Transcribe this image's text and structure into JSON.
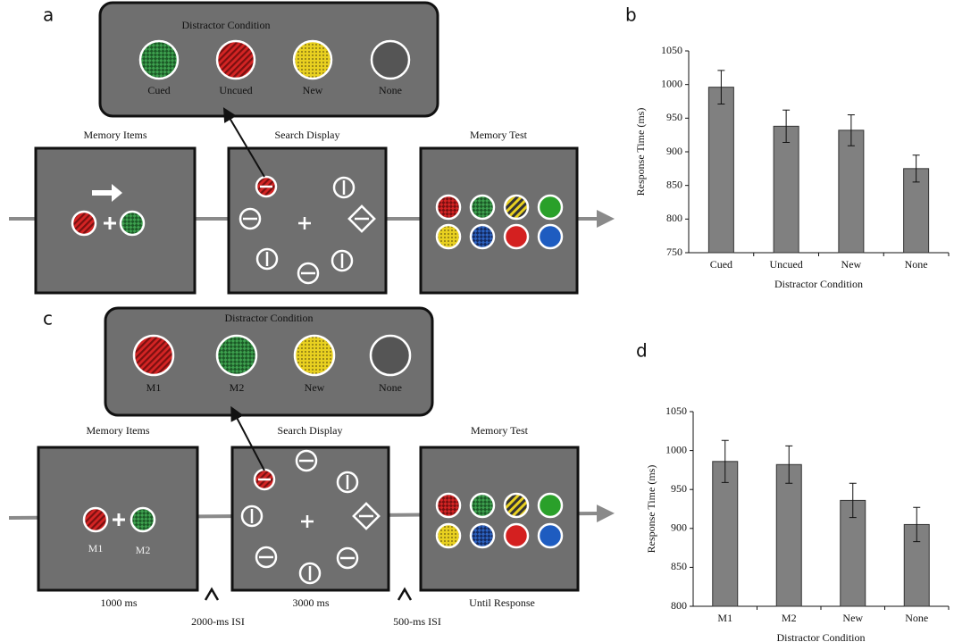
{
  "panels": {
    "a": {
      "label": "a",
      "distractor_title": "Distractor Condition",
      "distractor_labels": [
        "Cued",
        "Uncued",
        "New",
        "None"
      ],
      "frame_titles": [
        "Memory Items",
        "Search Display",
        "Memory Test"
      ]
    },
    "b": {
      "label": "b"
    },
    "c": {
      "label": "c",
      "distractor_title": "Distractor Condition",
      "distractor_labels": [
        "M1",
        "M2",
        "New",
        "None"
      ],
      "frame_titles": [
        "Memory Items",
        "Search Display",
        "Memory Test"
      ],
      "item_labels": [
        "M1",
        "M2"
      ],
      "durations": [
        "1000 ms",
        "3000 ms",
        "Until Response"
      ],
      "isi": [
        "2000-ms ISI",
        "500-ms ISI"
      ]
    },
    "d": {
      "label": "d"
    }
  },
  "chart_data": [
    {
      "type": "bar",
      "categories": [
        "Cued",
        "Uncued",
        "New",
        "None"
      ],
      "values": [
        996,
        938,
        932,
        875
      ],
      "errors": [
        25,
        24,
        23,
        20
      ],
      "color": "#808080",
      "ylim": [
        750,
        1050
      ],
      "yticks": [
        750,
        800,
        850,
        900,
        950,
        1000,
        1050
      ],
      "y_label": "Response Time (ms)",
      "x_label": "Distractor Condition"
    },
    {
      "type": "bar",
      "categories": [
        "M1",
        "M2",
        "New",
        "None"
      ],
      "values": [
        986,
        982,
        936,
        905
      ],
      "errors": [
        27,
        24,
        22,
        22
      ],
      "color": "#808080",
      "ylim": [
        800,
        1050
      ],
      "yticks": [
        800,
        850,
        900,
        950,
        1000,
        1050
      ],
      "y_label": "Response Time (ms)",
      "x_label": "Distractor Condition"
    }
  ]
}
